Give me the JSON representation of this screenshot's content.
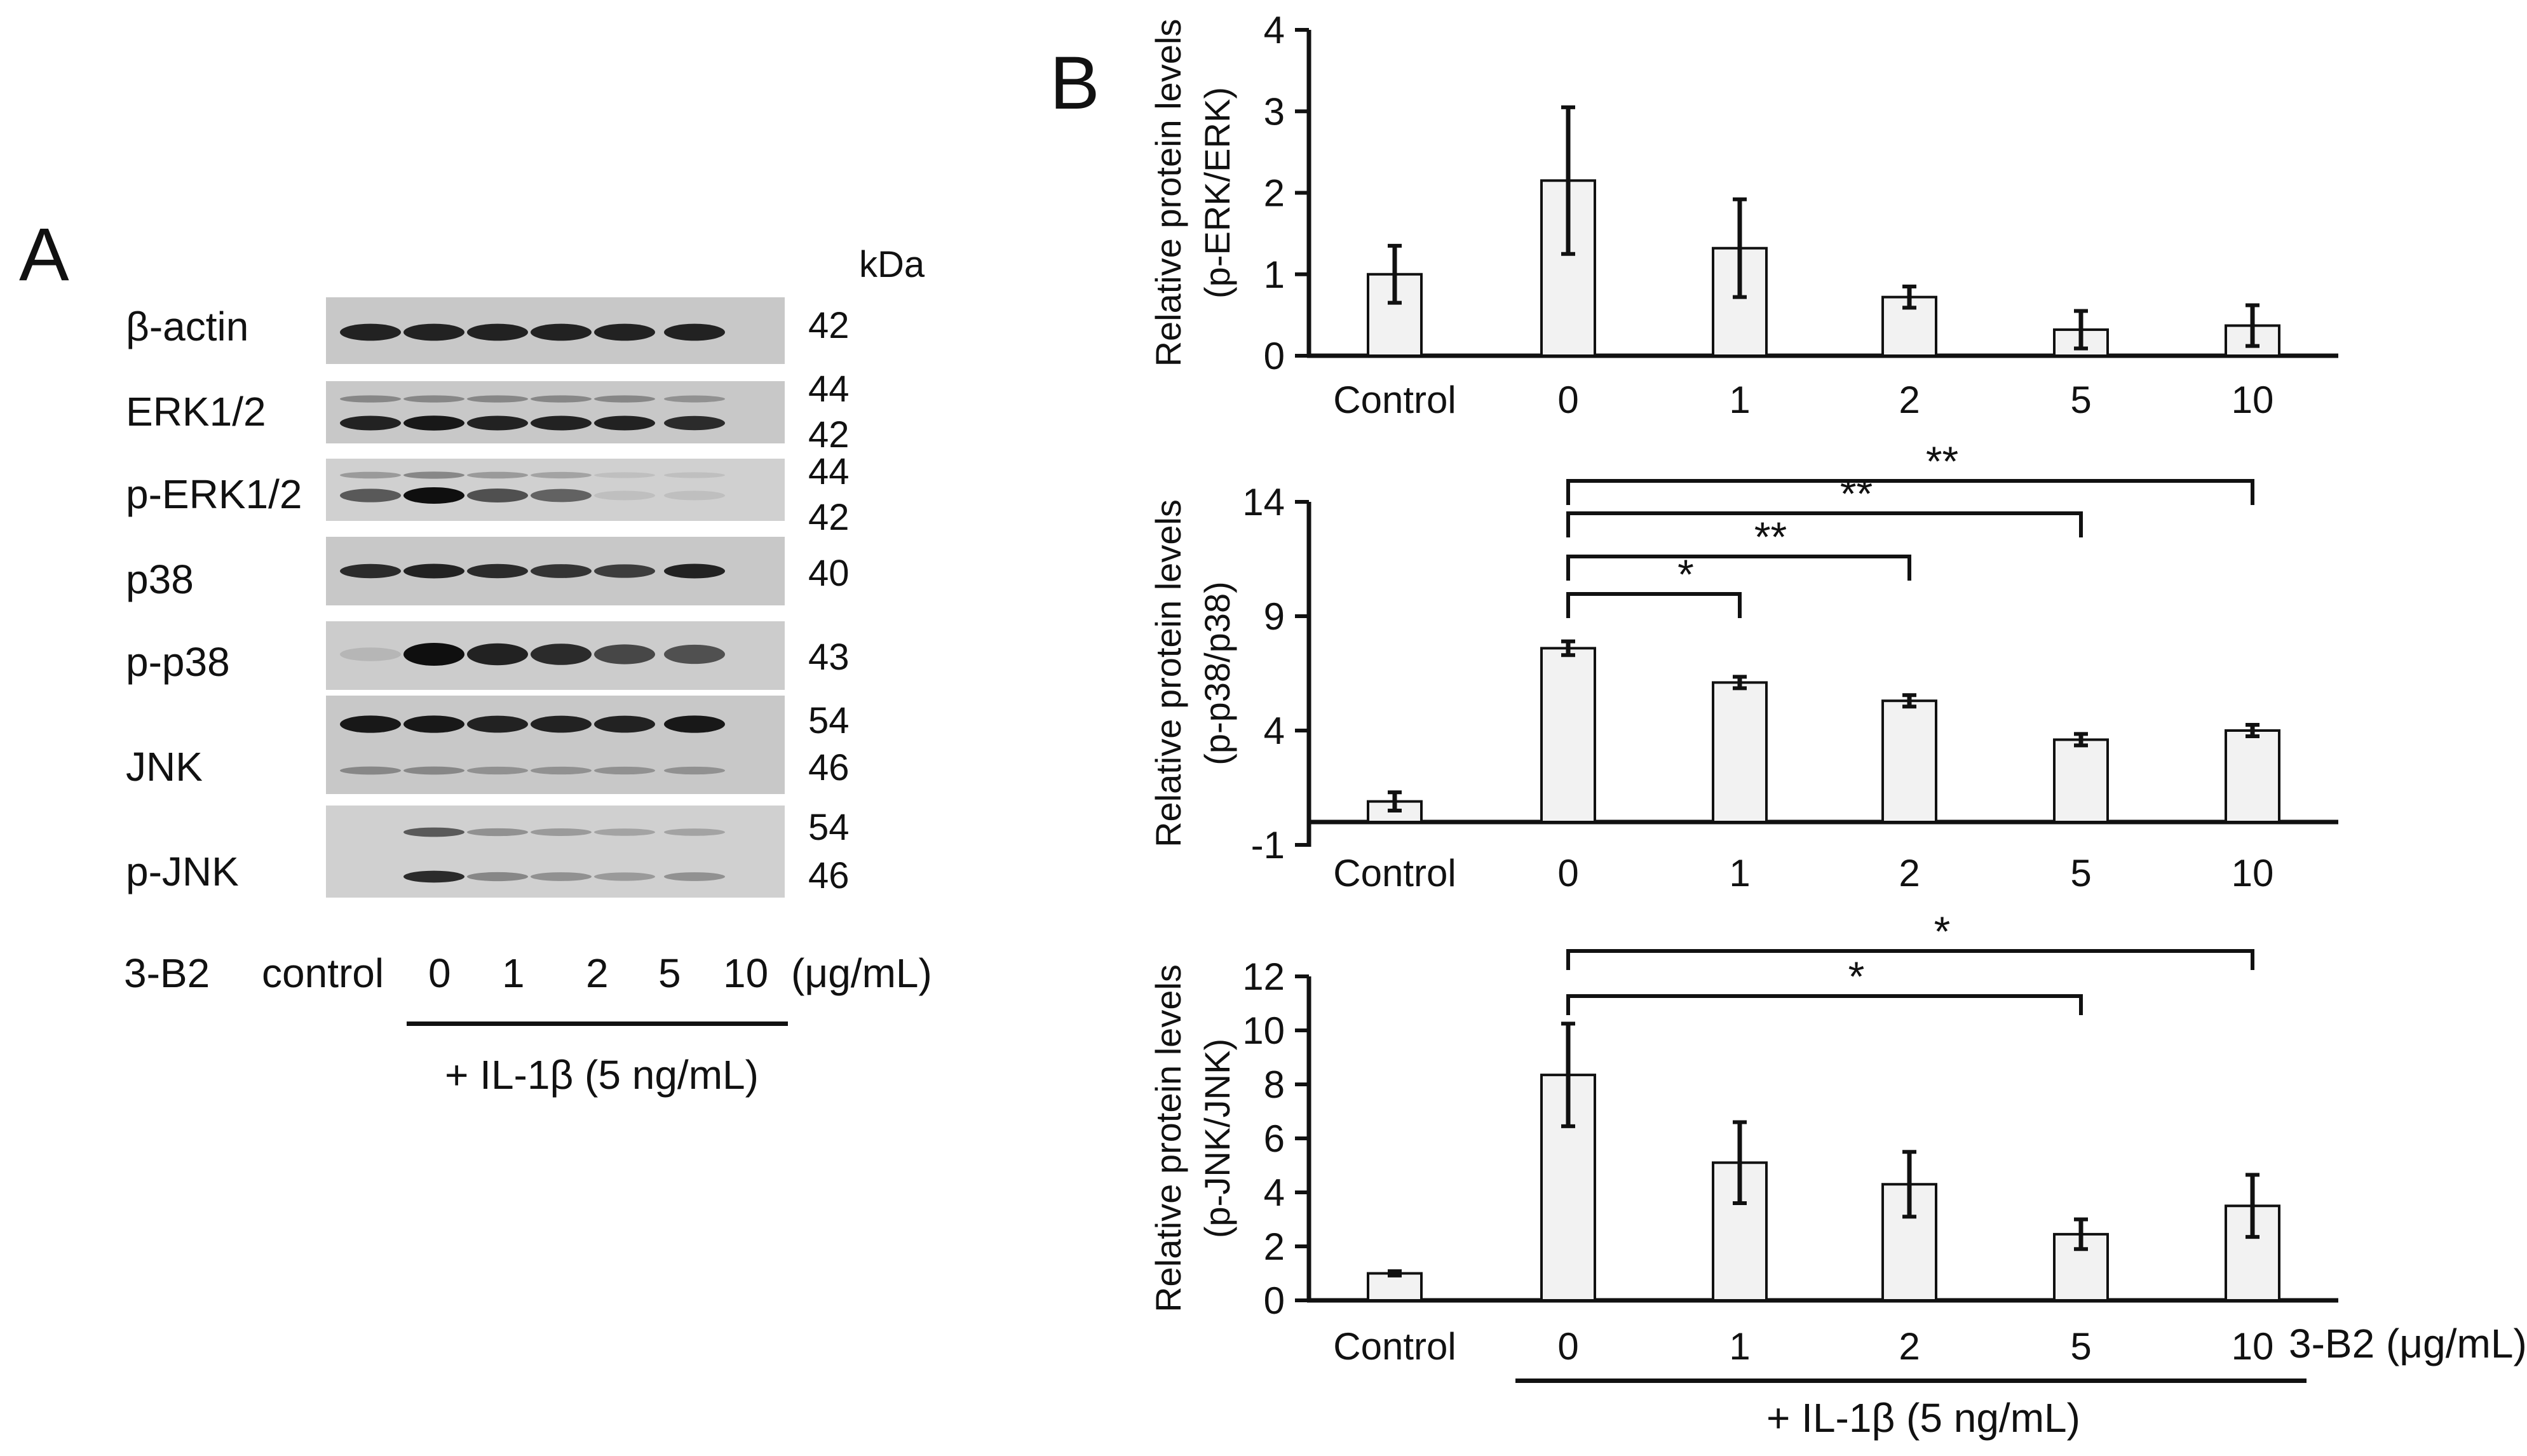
{
  "panel_a": {
    "letter": "A",
    "kda_header": "kDa",
    "blots": [
      {
        "name": "β-actin",
        "kda": [
          "42"
        ]
      },
      {
        "name": "ERK1/2",
        "kda": [
          "44",
          "42"
        ]
      },
      {
        "name": "p-ERK1/2",
        "kda": [
          "44",
          "42"
        ]
      },
      {
        "name": "p38",
        "kda": [
          "40"
        ]
      },
      {
        "name": "p-p38",
        "kda": [
          "43"
        ]
      },
      {
        "name": "JNK",
        "kda": [
          "54",
          "46"
        ]
      },
      {
        "name": "p-JNK",
        "kda": [
          "54",
          "46"
        ]
      }
    ],
    "treatment_label": "3-B2",
    "lanes": [
      "control",
      "0",
      "1",
      "2",
      "5",
      "10"
    ],
    "unit": "(μg/mL)",
    "il1b_label": "+ IL-1β (5 ng/mL)",
    "band_intensity": {
      "b_actin": [
        0.9,
        0.9,
        0.9,
        0.9,
        0.9,
        0.9
      ],
      "erk_top": [
        0.35,
        0.35,
        0.35,
        0.35,
        0.35,
        0.3
      ],
      "erk_bottom": [
        0.9,
        0.95,
        0.9,
        0.9,
        0.9,
        0.85
      ],
      "perk_top": [
        0.25,
        0.35,
        0.25,
        0.2,
        0.05,
        0.05
      ],
      "perk_bottom": [
        0.6,
        1.0,
        0.65,
        0.55,
        0.05,
        0.05
      ],
      "p38": [
        0.85,
        0.9,
        0.85,
        0.8,
        0.75,
        0.9
      ],
      "pp38": [
        0.1,
        1.0,
        0.9,
        0.85,
        0.7,
        0.65
      ],
      "jnk_top": [
        0.95,
        0.95,
        0.9,
        0.9,
        0.9,
        0.95
      ],
      "jnk_bottom": [
        0.35,
        0.35,
        0.3,
        0.3,
        0.3,
        0.3
      ],
      "pjnk_top": [
        0.0,
        0.6,
        0.3,
        0.25,
        0.2,
        0.2
      ],
      "pjnk_bottom": [
        0.0,
        0.85,
        0.35,
        0.3,
        0.25,
        0.3
      ]
    }
  },
  "panel_b": {
    "letter": "B",
    "x_footer_label": "3-B2 (μg/mL)",
    "il1b_label": "+ IL-1β (5 ng/mL)"
  },
  "chart_data": [
    {
      "type": "bar",
      "categories": [
        "Control",
        "0",
        "1",
        "2",
        "5",
        "10"
      ],
      "values": [
        1.0,
        2.15,
        1.32,
        0.72,
        0.32,
        0.37
      ],
      "errors": [
        0.35,
        0.9,
        0.6,
        0.13,
        0.23,
        0.25
      ],
      "ylabel": [
        "Relative protein levels",
        "(p-ERK/ERK)"
      ],
      "ylim": [
        0,
        4
      ],
      "yticks": [
        0,
        1,
        2,
        3,
        4
      ],
      "significance": [],
      "bar_color": "#f2f2f2"
    },
    {
      "type": "bar",
      "categories": [
        "Control",
        "0",
        "1",
        "2",
        "5",
        "10"
      ],
      "values": [
        0.9,
        7.6,
        6.1,
        5.3,
        3.6,
        4.0
      ],
      "errors": [
        0.4,
        0.3,
        0.25,
        0.25,
        0.25,
        0.25
      ],
      "ylabel": [
        "Relative protein levels",
        "(p-p38/p38)"
      ],
      "ylim": [
        -1,
        14
      ],
      "yticks": [
        -1,
        4,
        9,
        14
      ],
      "significance": [
        {
          "from": "0",
          "to": "1",
          "label": "*"
        },
        {
          "from": "0",
          "to": "2",
          "label": "**"
        },
        {
          "from": "0",
          "to": "5",
          "label": "**"
        },
        {
          "from": "0",
          "to": "10",
          "label": "**"
        }
      ],
      "bar_color": "#f2f2f2"
    },
    {
      "type": "bar",
      "categories": [
        "Control",
        "0",
        "1",
        "2",
        "5",
        "10"
      ],
      "values": [
        1.0,
        8.35,
        5.1,
        4.3,
        2.45,
        3.5
      ],
      "errors": [
        0.08,
        1.9,
        1.5,
        1.2,
        0.55,
        1.15
      ],
      "ylabel": [
        "Relative protein levels",
        "(p-JNK/JNK)"
      ],
      "ylim": [
        0,
        12
      ],
      "yticks": [
        0,
        2,
        4,
        6,
        8,
        10,
        12
      ],
      "significance": [
        {
          "from": "0",
          "to": "5",
          "label": "*"
        },
        {
          "from": "0",
          "to": "10",
          "label": "*"
        }
      ],
      "bar_color": "#f2f2f2"
    }
  ]
}
